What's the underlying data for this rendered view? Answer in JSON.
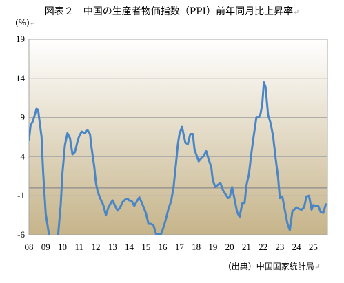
{
  "title": "図表２　中国の生産者物価指数（PPI）前年同月比上昇率",
  "unit": "(%)",
  "source": "（出典）中国国家統計局",
  "return_mark": "↵",
  "colors": {
    "line": "#4a86c6",
    "grid": "#a6a6a6",
    "zero_line": "#8c8c8c",
    "bg_top": "#ffffff",
    "bg_bottom": "#c6b48a"
  },
  "chart_data": {
    "type": "line",
    "ylim": [
      -6,
      19
    ],
    "y_ticks": [
      19,
      14,
      9,
      4,
      -1,
      -6
    ],
    "x_range": [
      2008,
      2025.85
    ],
    "x_tick_labels": [
      "08",
      "09",
      "10",
      "11",
      "12",
      "13",
      "14",
      "15",
      "16",
      "17",
      "18",
      "19",
      "20",
      "21",
      "22",
      "23",
      "24",
      "25"
    ],
    "grid": true,
    "series": [
      {
        "x": [
          2008.0,
          2008.1,
          2008.25,
          2008.45,
          2008.55,
          2008.6,
          2008.75,
          2008.85,
          2009.0,
          2009.2,
          2009.35,
          2009.5,
          2009.6,
          2009.75,
          2009.9,
          2010.0,
          2010.15,
          2010.3,
          2010.45,
          2010.6,
          2010.75,
          2010.9,
          2011.0,
          2011.15,
          2011.35,
          2011.5,
          2011.65,
          2011.75,
          2011.9,
          2012.0,
          2012.1,
          2012.25,
          2012.45,
          2012.6,
          2012.75,
          2012.9,
          2013.0,
          2013.15,
          2013.3,
          2013.45,
          2013.6,
          2013.75,
          2013.9,
          2014.0,
          2014.15,
          2014.3,
          2014.45,
          2014.6,
          2014.75,
          2014.9,
          2015.0,
          2015.15,
          2015.3,
          2015.45,
          2015.6,
          2015.75,
          2015.9,
          2016.0,
          2016.15,
          2016.35,
          2016.5,
          2016.65,
          2016.8,
          2016.9,
          2017.0,
          2017.15,
          2017.35,
          2017.5,
          2017.65,
          2017.8,
          2017.9,
          2018.0,
          2018.15,
          2018.3,
          2018.45,
          2018.6,
          2018.75,
          2018.9,
          2019.0,
          2019.15,
          2019.3,
          2019.45,
          2019.6,
          2019.75,
          2019.9,
          2020.0,
          2020.15,
          2020.3,
          2020.45,
          2020.6,
          2020.75,
          2020.9,
          2021.0,
          2021.15,
          2021.3,
          2021.45,
          2021.6,
          2021.75,
          2021.85,
          2021.95,
          2022.05,
          2022.15,
          2022.3,
          2022.45,
          2022.6,
          2022.75,
          2022.9,
          2023.0,
          2023.15,
          2023.3,
          2023.45,
          2023.6,
          2023.75,
          2023.9,
          2024.0,
          2024.15,
          2024.3,
          2024.45,
          2024.6,
          2024.75,
          2024.9,
          2025.0,
          2025.15,
          2025.3,
          2025.45,
          2025.6,
          2025.75
        ],
        "y": [
          6.1,
          8.0,
          8.6,
          10.1,
          10.0,
          9.0,
          6.6,
          2.0,
          -3.3,
          -6.0,
          -8.2,
          -7.8,
          -7.0,
          -5.8,
          -2.1,
          1.8,
          5.5,
          7.0,
          6.4,
          4.3,
          4.6,
          5.9,
          6.6,
          7.2,
          7.0,
          7.4,
          6.9,
          5.0,
          2.8,
          0.7,
          -0.4,
          -1.3,
          -2.2,
          -3.5,
          -2.5,
          -1.9,
          -1.6,
          -2.3,
          -2.9,
          -2.5,
          -1.8,
          -1.5,
          -1.4,
          -1.6,
          -1.7,
          -2.3,
          -1.7,
          -1.2,
          -1.9,
          -2.7,
          -3.3,
          -4.6,
          -4.6,
          -4.8,
          -5.9,
          -5.9,
          -5.9,
          -5.3,
          -4.3,
          -2.6,
          -1.7,
          0.1,
          3.3,
          5.5,
          6.9,
          7.8,
          5.8,
          5.6,
          6.9,
          6.9,
          4.9,
          4.3,
          3.4,
          3.8,
          4.1,
          4.7,
          3.6,
          2.7,
          0.9,
          0.1,
          0.4,
          0.6,
          -0.3,
          -0.8,
          -1.3,
          -1.2,
          0.1,
          -1.5,
          -3.1,
          -3.7,
          -2.0,
          -1.9,
          0.3,
          1.7,
          4.4,
          6.8,
          9.0,
          9.0,
          9.5,
          10.7,
          13.5,
          12.9,
          9.3,
          8.3,
          6.6,
          3.8,
          1.3,
          -1.3,
          -1.1,
          -2.8,
          -4.5,
          -5.4,
          -3.0,
          -2.7,
          -2.5,
          -2.7,
          -2.8,
          -2.5,
          -1.1,
          -1.0,
          -2.8,
          -2.2,
          -2.3,
          -2.3,
          -3.1,
          -3.2,
          -2.1
        ]
      }
    ]
  }
}
